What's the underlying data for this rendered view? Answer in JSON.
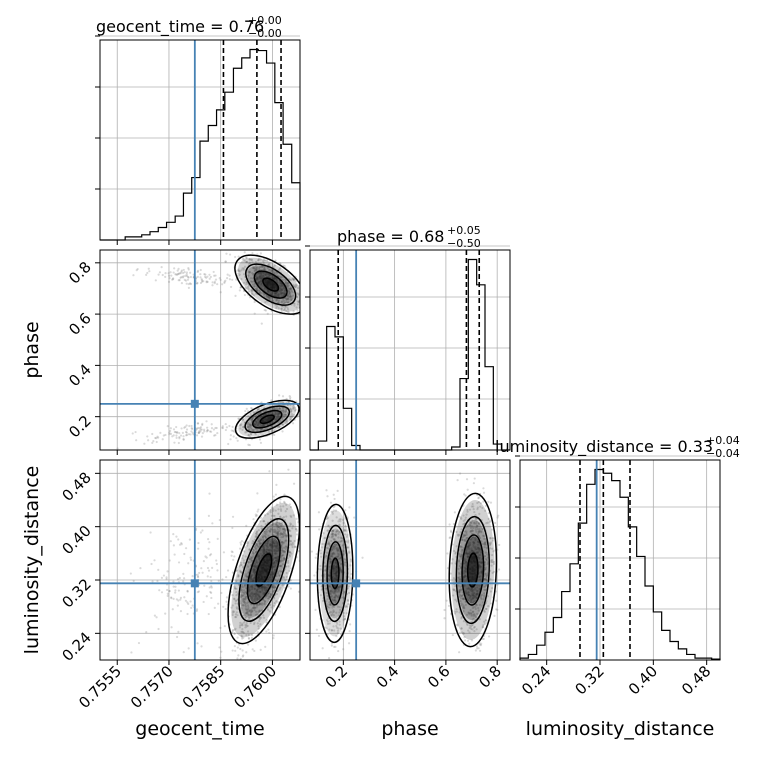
{
  "colors": {
    "truth": "#4682b4",
    "hist": "#000000",
    "grid": "#b0b0b0",
    "scatter": "#7a7a7a",
    "fill": "#000000"
  },
  "chart_data": {
    "type": "corner",
    "parameters": [
      {
        "key": "geocent_time",
        "label": "geocent_time",
        "title_lhs": "geocent_time = 0.76",
        "title_sup": "+0.00",
        "title_sub": "−0.00",
        "range": [
          0.755,
          0.7608
        ],
        "ticks": [
          0.7555,
          0.757,
          0.7585,
          0.76
        ],
        "tick_labels": [
          "0.7555",
          "0.7570",
          "0.7585",
          "0.7600"
        ],
        "truth": 0.75775,
        "quantiles": [
          0.75858,
          0.75955,
          0.76025
        ]
      },
      {
        "key": "phase",
        "label": "phase",
        "title_lhs": "phase = 0.68",
        "title_sup": "+0.05",
        "title_sub": "−0.50",
        "range": [
          0.07,
          0.85
        ],
        "ticks": [
          0.2,
          0.4,
          0.6,
          0.8
        ],
        "tick_labels": [
          "0.2",
          "0.4",
          "0.6",
          "0.8"
        ],
        "truth": 0.25,
        "quantiles": [
          0.18,
          0.68,
          0.73
        ]
      },
      {
        "key": "luminosity_distance",
        "label": "luminosity_distance",
        "title_lhs": "luminosity_distance = 0.33",
        "title_sup": "+0.04",
        "title_sub": "−0.04",
        "range": [
          0.2,
          0.5
        ],
        "ticks": [
          0.24,
          0.32,
          0.4,
          0.48
        ],
        "tick_labels": [
          "0.24",
          "0.32",
          "0.40",
          "0.48"
        ],
        "truth": 0.315,
        "quantiles": [
          0.29,
          0.325,
          0.365
        ]
      }
    ],
    "histograms": [
      {
        "bins": [
          0.755,
          0.75524,
          0.75548,
          0.75573,
          0.75597,
          0.75621,
          0.75645,
          0.75669,
          0.75693,
          0.75718,
          0.75742,
          0.75766,
          0.7579,
          0.75814,
          0.75838,
          0.75862,
          0.75887,
          0.75911,
          0.75935,
          0.75959,
          0.75983,
          0.76007,
          0.76031,
          0.76056,
          0.7608
        ],
        "values": [
          0,
          0,
          0,
          0.3,
          0.3,
          0.5,
          0.8,
          1.2,
          1.7,
          2.3,
          4.5,
          6.0,
          9.5,
          11.0,
          12.5,
          14.2,
          16.5,
          17.5,
          18.3,
          18.2,
          17.0,
          13.2,
          9.2,
          5.5
        ]
      },
      {
        "bins": [
          0.07,
          0.1025,
          0.135,
          0.1675,
          0.2,
          0.2325,
          0.265,
          0.2975,
          0.33,
          0.3625,
          0.395,
          0.4275,
          0.46,
          0.4925,
          0.525,
          0.5575,
          0.59,
          0.6225,
          0.655,
          0.6875,
          0.72,
          0.7525,
          0.785,
          0.8175,
          0.85
        ],
        "values": [
          0,
          0.6,
          8.3,
          7.6,
          2.8,
          0.3,
          0,
          0,
          0,
          0,
          0,
          0,
          0,
          0,
          0,
          0,
          0,
          0.2,
          4.8,
          12.8,
          11.1,
          5.6,
          0.4,
          0
        ]
      },
      {
        "bins": [
          0.2,
          0.2125,
          0.225,
          0.2375,
          0.25,
          0.2625,
          0.275,
          0.2875,
          0.3,
          0.3125,
          0.325,
          0.3375,
          0.35,
          0.3625,
          0.375,
          0.3875,
          0.4,
          0.4125,
          0.425,
          0.4375,
          0.45,
          0.4625,
          0.475,
          0.4875,
          0.5
        ],
        "values": [
          0.1,
          0.3,
          0.8,
          1.5,
          2.3,
          3.7,
          5.2,
          7.4,
          9.5,
          10.3,
          10.1,
          9.7,
          8.8,
          7.2,
          5.6,
          4.0,
          2.6,
          1.6,
          1.0,
          0.6,
          0.3,
          0.1,
          0.1,
          0.05
        ]
      }
    ],
    "pairs": [
      {
        "row": 1,
        "col": 0,
        "blobs": [
          {
            "cx": 0.75995,
            "cy": 0.715,
            "sx": 0.00045,
            "sy": 0.05,
            "rho": -0.55,
            "n": 800,
            "weight": 1.0
          },
          {
            "cx": 0.75985,
            "cy": 0.19,
            "sx": 0.0004,
            "sy": 0.032,
            "rho": 0.55,
            "n": 650,
            "weight": 0.85
          },
          {
            "cx": 0.7575,
            "cy": 0.745,
            "sx": 0.0006,
            "sy": 0.022,
            "rho": -0.6,
            "n": 120,
            "weight": 0.0
          },
          {
            "cx": 0.7575,
            "cy": 0.14,
            "sx": 0.0006,
            "sy": 0.02,
            "rho": 0.6,
            "n": 110,
            "weight": 0.0
          }
        ]
      },
      {
        "row": 2,
        "col": 0,
        "blobs": [
          {
            "cx": 0.75975,
            "cy": 0.335,
            "sx": 0.00045,
            "sy": 0.048,
            "rho": 0.6,
            "n": 1400,
            "weight": 1.0
          },
          {
            "cx": 0.7576,
            "cy": 0.32,
            "sx": 0.0007,
            "sy": 0.045,
            "rho": 0.2,
            "n": 160,
            "weight": 0.0
          }
        ]
      },
      {
        "row": 2,
        "col": 1,
        "blobs": [
          {
            "cx": 0.705,
            "cy": 0.335,
            "sx": 0.04,
            "sy": 0.05,
            "rho": 0.1,
            "n": 900,
            "weight": 1.0
          },
          {
            "cx": 0.168,
            "cy": 0.33,
            "sx": 0.03,
            "sy": 0.045,
            "rho": 0.05,
            "n": 620,
            "weight": 0.75
          }
        ]
      }
    ]
  }
}
